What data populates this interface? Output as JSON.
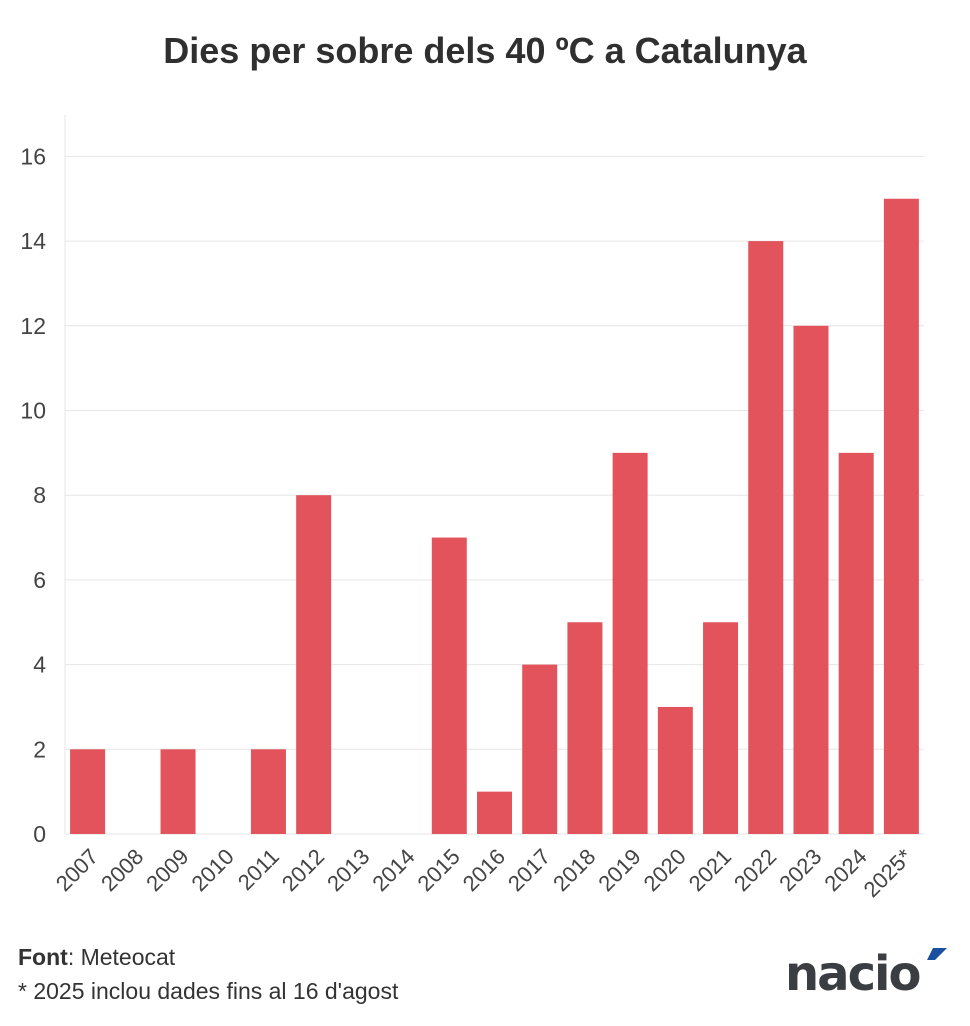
{
  "chart_data": {
    "type": "bar",
    "title": "Dies per sobre dels 40 ºC a Catalunya",
    "categories": [
      "2007",
      "2008",
      "2009",
      "2010",
      "2011",
      "2012",
      "2013",
      "2014",
      "2015",
      "2016",
      "2017",
      "2018",
      "2019",
      "2020",
      "2021",
      "2022",
      "2023",
      "2024",
      "2025*"
    ],
    "values": [
      2,
      0,
      2,
      0,
      2,
      8,
      0,
      0,
      7,
      1,
      4,
      5,
      9,
      3,
      5,
      14,
      12,
      9,
      15
    ],
    "ylim": [
      0,
      17
    ],
    "yticks": [
      0,
      2,
      4,
      6,
      8,
      10,
      12,
      14,
      16
    ],
    "xlabel": "",
    "ylabel": "",
    "grid": true,
    "bar_color": "#e3535b"
  },
  "footer": {
    "source_label": "Font",
    "source_value": ": Meteocat",
    "note": "* 2025 inclou dades fins al 16 d'agost"
  },
  "logo": {
    "text": "nació",
    "accent_color": "#1b4fa0",
    "color": "#3a3d41"
  }
}
